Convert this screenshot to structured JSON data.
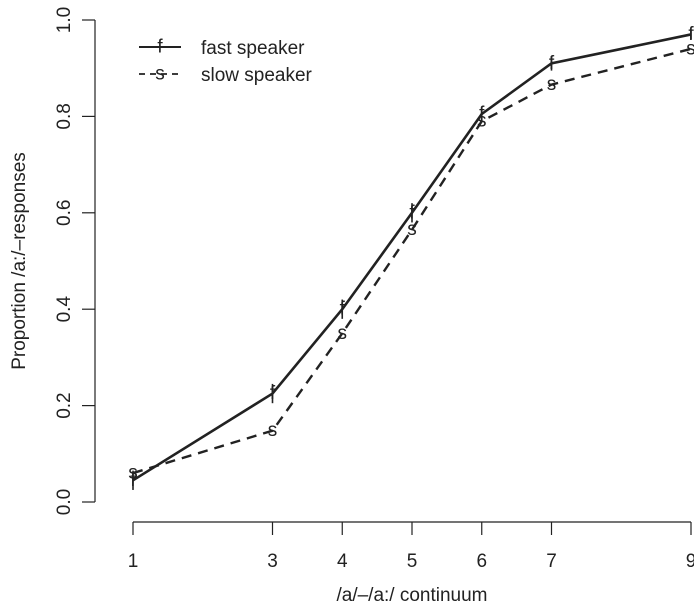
{
  "chart_data": {
    "type": "line",
    "xlabel": "/a/–/a:/ continuum",
    "ylabel": "Proportion /a:/–responses",
    "x": [
      1,
      3,
      4,
      5,
      6,
      7,
      9
    ],
    "x_ticks": [
      "1",
      "3",
      "4",
      "5",
      "6",
      "7",
      "9"
    ],
    "y_ticks": [
      "0.0",
      "0.2",
      "0.4",
      "0.6",
      "0.8",
      "1.0"
    ],
    "ylim": [
      0,
      1
    ],
    "xlim": [
      1,
      9
    ],
    "legend_position": "top-left",
    "series": [
      {
        "name": "fast speaker",
        "marker": "f",
        "line_style": "solid",
        "values": [
          0.045,
          0.225,
          0.4,
          0.6,
          0.805,
          0.91,
          0.97
        ],
        "error": [
          0.02,
          0.02,
          0.02,
          0.02,
          0.015,
          0.015,
          0.01
        ]
      },
      {
        "name": "slow speaker",
        "marker": "s",
        "line_style": "dashed",
        "values": [
          0.06,
          0.148,
          0.35,
          0.565,
          0.79,
          0.866,
          0.94
        ],
        "error": [
          0.0,
          0.0,
          0.0,
          0.0,
          0.0,
          0.0,
          0.0
        ]
      }
    ],
    "legend": [
      {
        "label": "fast speaker",
        "marker": "f",
        "line_style": "solid"
      },
      {
        "label": "slow speaker",
        "marker": "s",
        "line_style": "dashed"
      }
    ]
  }
}
